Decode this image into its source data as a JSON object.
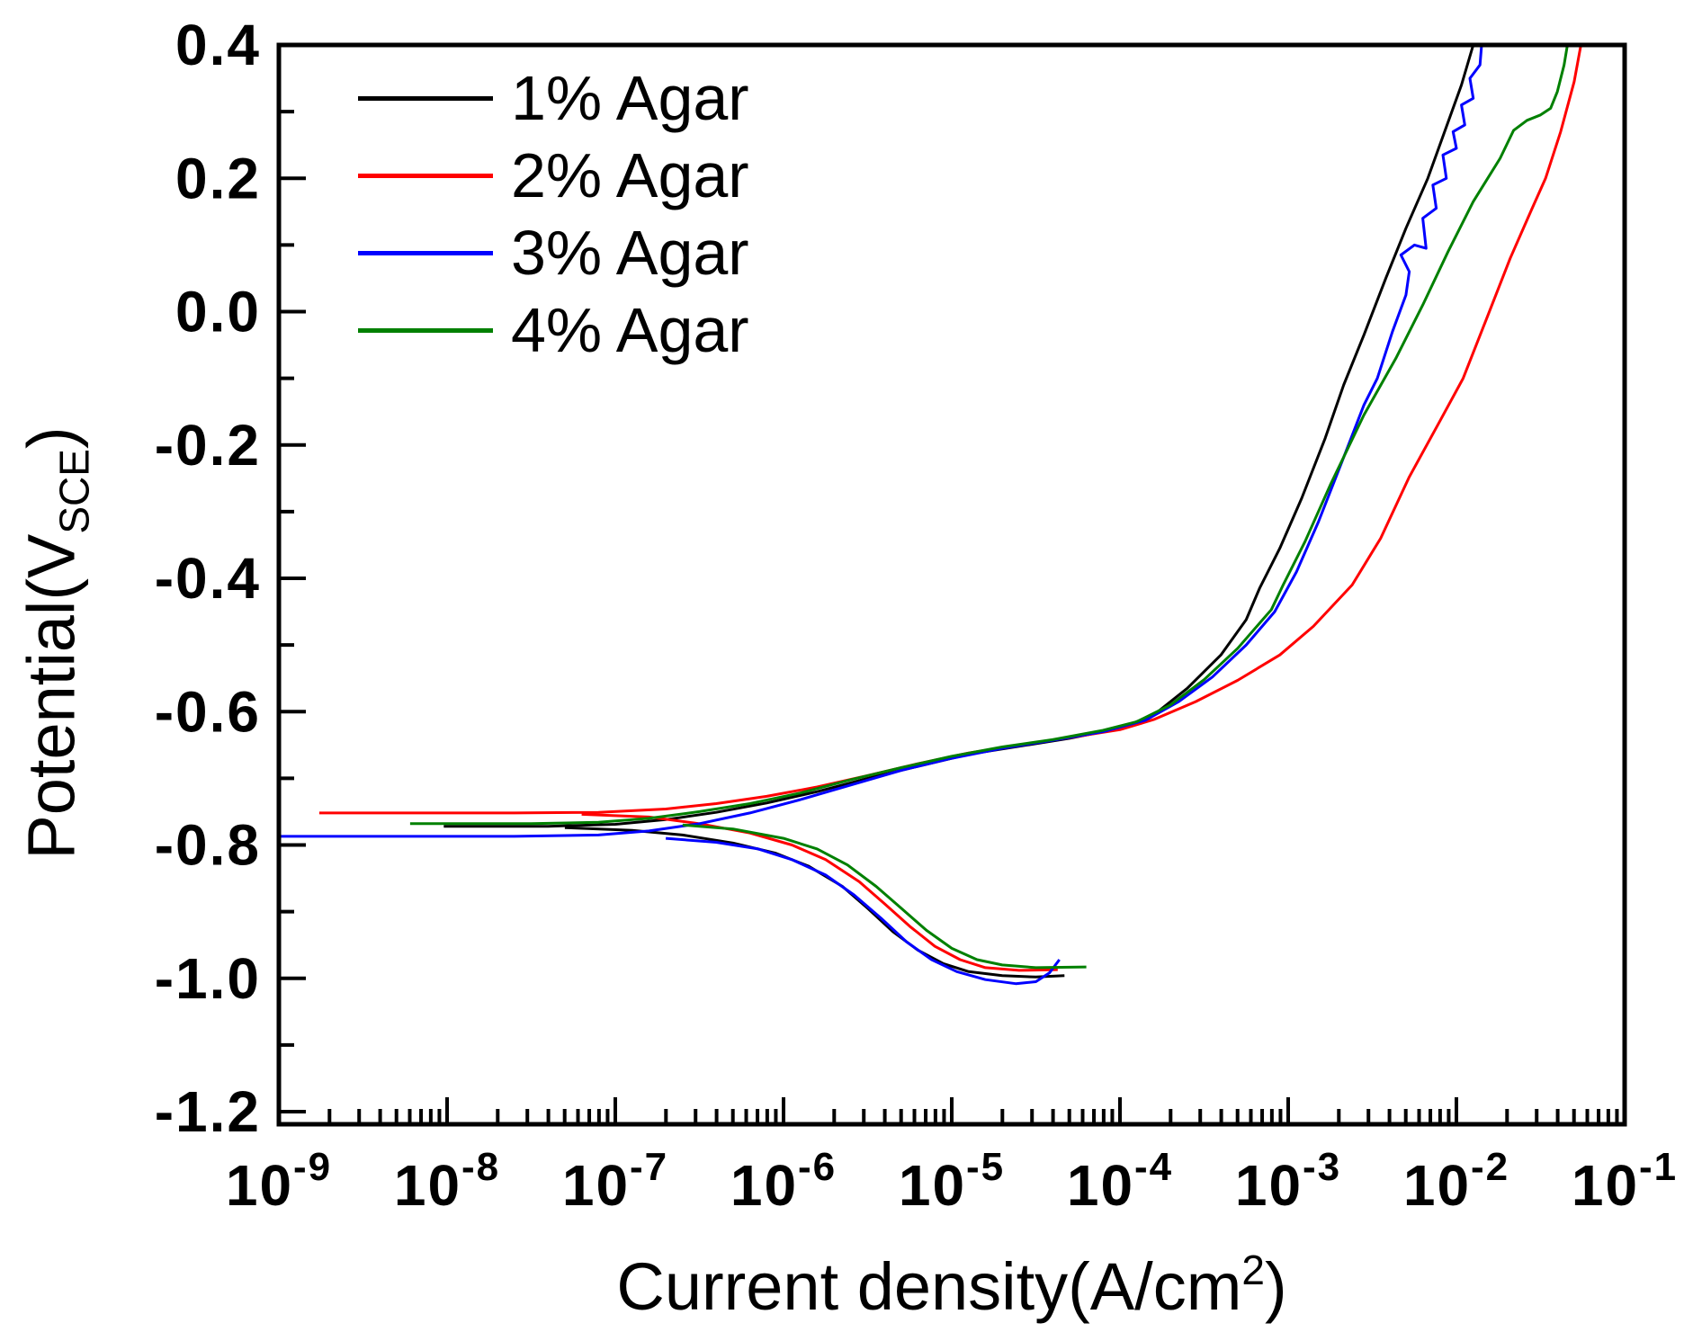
{
  "chart_data": {
    "type": "line",
    "title": "",
    "xlabel": {
      "main": "Current density(A/cm",
      "sup": "2",
      "close": ")"
    },
    "ylabel": {
      "main": "Potential(V",
      "sub": "SCE",
      "close": ")"
    },
    "x_axis": {
      "scale": "log",
      "min_exponent": -9,
      "max_exponent": -1,
      "tick_base": "10",
      "tick_exponents": [
        -9,
        -8,
        -7,
        -6,
        -5,
        -4,
        -3,
        -2,
        -1
      ],
      "minor_ticks_per_decade": [
        2,
        3,
        4,
        5,
        6,
        7,
        8,
        9
      ]
    },
    "y_axis": {
      "min": -1.2,
      "max": 0.4,
      "major_step": 0.2,
      "minor_step": 0.1,
      "tick_labels": [
        "0.4",
        "0.2",
        "0.0",
        "-0.2",
        "-0.4",
        "-0.6",
        "-0.8",
        "-1.0",
        "-1.2"
      ]
    },
    "grid": false,
    "legend_position": "top-left-inside",
    "series": [
      {
        "name": "1% Agar",
        "color": "#000000",
        "ecorr_V": -0.77,
        "anodic": [
          [
            -8.02,
            -0.772
          ],
          [
            -7.4,
            -0.772
          ],
          [
            -7.0,
            -0.769
          ],
          [
            -6.7,
            -0.762
          ],
          [
            -6.4,
            -0.751
          ],
          [
            -6.1,
            -0.737
          ],
          [
            -5.8,
            -0.72
          ],
          [
            -5.5,
            -0.7
          ],
          [
            -5.2,
            -0.682
          ],
          [
            -4.9,
            -0.664
          ],
          [
            -4.6,
            -0.652
          ],
          [
            -4.3,
            -0.64
          ],
          [
            -4.0,
            -0.625
          ],
          [
            -3.8,
            -0.605
          ],
          [
            -3.6,
            -0.565
          ],
          [
            -3.4,
            -0.515
          ],
          [
            -3.25,
            -0.462
          ],
          [
            -3.17,
            -0.415
          ],
          [
            -3.05,
            -0.355
          ],
          [
            -2.92,
            -0.28
          ],
          [
            -2.78,
            -0.19
          ],
          [
            -2.67,
            -0.11
          ],
          [
            -2.55,
            -0.035
          ],
          [
            -2.42,
            0.05
          ],
          [
            -2.3,
            0.125
          ],
          [
            -2.17,
            0.2
          ],
          [
            -2.07,
            0.27
          ],
          [
            -1.97,
            0.34
          ],
          [
            -1.9,
            0.4
          ]
        ],
        "cathodic": [
          [
            -7.3,
            -0.774
          ],
          [
            -6.9,
            -0.778
          ],
          [
            -6.6,
            -0.785
          ],
          [
            -6.3,
            -0.797
          ],
          [
            -6.05,
            -0.812
          ],
          [
            -5.85,
            -0.832
          ],
          [
            -5.65,
            -0.862
          ],
          [
            -5.5,
            -0.895
          ],
          [
            -5.35,
            -0.93
          ],
          [
            -5.2,
            -0.958
          ],
          [
            -5.05,
            -0.978
          ],
          [
            -4.9,
            -0.99
          ],
          [
            -4.7,
            -0.996
          ],
          [
            -4.5,
            -0.998
          ],
          [
            -4.33,
            -0.996
          ]
        ]
      },
      {
        "name": "2% Agar",
        "color": "#FF0000",
        "ecorr_V": -0.75,
        "anodic": [
          [
            -8.76,
            -0.752
          ],
          [
            -7.6,
            -0.752
          ],
          [
            -7.1,
            -0.751
          ],
          [
            -6.7,
            -0.746
          ],
          [
            -6.4,
            -0.738
          ],
          [
            -6.1,
            -0.727
          ],
          [
            -5.8,
            -0.713
          ],
          [
            -5.5,
            -0.696
          ],
          [
            -5.2,
            -0.678
          ],
          [
            -4.9,
            -0.662
          ],
          [
            -4.6,
            -0.65
          ],
          [
            -4.3,
            -0.639
          ],
          [
            -4.0,
            -0.627
          ],
          [
            -3.8,
            -0.612
          ],
          [
            -3.55,
            -0.585
          ],
          [
            -3.3,
            -0.553
          ],
          [
            -3.05,
            -0.515
          ],
          [
            -2.85,
            -0.472
          ],
          [
            -2.62,
            -0.41
          ],
          [
            -2.45,
            -0.34
          ],
          [
            -2.28,
            -0.248
          ],
          [
            -2.1,
            -0.165
          ],
          [
            -1.96,
            -0.1
          ],
          [
            -1.82,
            -0.01
          ],
          [
            -1.68,
            0.08
          ],
          [
            -1.55,
            0.155
          ],
          [
            -1.47,
            0.2
          ],
          [
            -1.38,
            0.27
          ],
          [
            -1.3,
            0.345
          ],
          [
            -1.26,
            0.4
          ]
        ],
        "cathodic": [
          [
            -7.2,
            -0.754
          ],
          [
            -6.8,
            -0.758
          ],
          [
            -6.5,
            -0.768
          ],
          [
            -6.2,
            -0.782
          ],
          [
            -5.95,
            -0.8
          ],
          [
            -5.75,
            -0.822
          ],
          [
            -5.55,
            -0.855
          ],
          [
            -5.4,
            -0.888
          ],
          [
            -5.25,
            -0.922
          ],
          [
            -5.1,
            -0.952
          ],
          [
            -4.95,
            -0.972
          ],
          [
            -4.8,
            -0.984
          ],
          [
            -4.6,
            -0.988
          ],
          [
            -4.37,
            -0.987
          ]
        ]
      },
      {
        "name": "3% Agar",
        "color": "#0000FF",
        "ecorr_V": -0.79,
        "anodic": [
          [
            -9.0,
            -0.787
          ],
          [
            -7.6,
            -0.787
          ],
          [
            -7.1,
            -0.785
          ],
          [
            -6.8,
            -0.779
          ],
          [
            -6.5,
            -0.768
          ],
          [
            -6.2,
            -0.752
          ],
          [
            -5.9,
            -0.732
          ],
          [
            -5.6,
            -0.71
          ],
          [
            -5.3,
            -0.688
          ],
          [
            -5.0,
            -0.67
          ],
          [
            -4.7,
            -0.655
          ],
          [
            -4.4,
            -0.643
          ],
          [
            -4.1,
            -0.63
          ],
          [
            -3.85,
            -0.613
          ],
          [
            -3.65,
            -0.585
          ],
          [
            -3.45,
            -0.548
          ],
          [
            -3.25,
            -0.5
          ],
          [
            -3.08,
            -0.45
          ],
          [
            -2.95,
            -0.39
          ],
          [
            -2.82,
            -0.315
          ],
          [
            -2.68,
            -0.225
          ],
          [
            -2.55,
            -0.14
          ],
          [
            -2.47,
            -0.1
          ],
          [
            -2.38,
            -0.03
          ],
          [
            -2.3,
            0.025
          ],
          [
            -2.28,
            0.06
          ],
          [
            -2.33,
            0.085
          ],
          [
            -2.25,
            0.1
          ],
          [
            -2.18,
            0.095
          ],
          [
            -2.2,
            0.14
          ],
          [
            -2.12,
            0.155
          ],
          [
            -2.14,
            0.19
          ],
          [
            -2.06,
            0.2
          ],
          [
            -2.08,
            0.235
          ],
          [
            -2.0,
            0.245
          ],
          [
            -2.02,
            0.27
          ],
          [
            -1.95,
            0.28
          ],
          [
            -1.97,
            0.31
          ],
          [
            -1.9,
            0.32
          ],
          [
            -1.92,
            0.35
          ],
          [
            -1.86,
            0.37
          ],
          [
            -1.85,
            0.4
          ]
        ],
        "cathodic": [
          [
            -6.7,
            -0.79
          ],
          [
            -6.4,
            -0.796
          ],
          [
            -6.15,
            -0.806
          ],
          [
            -5.95,
            -0.822
          ],
          [
            -5.75,
            -0.845
          ],
          [
            -5.58,
            -0.875
          ],
          [
            -5.42,
            -0.91
          ],
          [
            -5.27,
            -0.945
          ],
          [
            -5.12,
            -0.972
          ],
          [
            -4.97,
            -0.99
          ],
          [
            -4.8,
            -1.002
          ],
          [
            -4.62,
            -1.008
          ],
          [
            -4.5,
            -1.005
          ],
          [
            -4.42,
            -0.992
          ],
          [
            -4.36,
            -0.972
          ]
        ]
      },
      {
        "name": "4% Agar",
        "color": "#008000",
        "ecorr_V": -0.77,
        "anodic": [
          [
            -8.22,
            -0.768
          ],
          [
            -7.5,
            -0.768
          ],
          [
            -7.1,
            -0.766
          ],
          [
            -6.8,
            -0.76
          ],
          [
            -6.5,
            -0.75
          ],
          [
            -6.2,
            -0.738
          ],
          [
            -5.9,
            -0.722
          ],
          [
            -5.6,
            -0.702
          ],
          [
            -5.3,
            -0.684
          ],
          [
            -5.0,
            -0.667
          ],
          [
            -4.7,
            -0.653
          ],
          [
            -4.4,
            -0.642
          ],
          [
            -4.1,
            -0.628
          ],
          [
            -3.9,
            -0.615
          ],
          [
            -3.7,
            -0.59
          ],
          [
            -3.5,
            -0.552
          ],
          [
            -3.3,
            -0.505
          ],
          [
            -3.1,
            -0.447
          ],
          [
            -3.03,
            -0.41
          ],
          [
            -2.9,
            -0.345
          ],
          [
            -2.75,
            -0.26
          ],
          [
            -2.55,
            -0.155
          ],
          [
            -2.36,
            -0.07
          ],
          [
            -2.2,
            0.01
          ],
          [
            -2.05,
            0.09
          ],
          [
            -1.9,
            0.165
          ],
          [
            -1.74,
            0.23
          ],
          [
            -1.66,
            0.272
          ],
          [
            -1.58,
            0.287
          ],
          [
            -1.5,
            0.295
          ],
          [
            -1.44,
            0.305
          ],
          [
            -1.4,
            0.33
          ],
          [
            -1.36,
            0.37
          ],
          [
            -1.34,
            0.4
          ]
        ],
        "cathodic": [
          [
            -6.6,
            -0.77
          ],
          [
            -6.3,
            -0.776
          ],
          [
            -6.0,
            -0.79
          ],
          [
            -5.8,
            -0.806
          ],
          [
            -5.62,
            -0.83
          ],
          [
            -5.45,
            -0.862
          ],
          [
            -5.3,
            -0.895
          ],
          [
            -5.15,
            -0.928
          ],
          [
            -5.0,
            -0.955
          ],
          [
            -4.85,
            -0.972
          ],
          [
            -4.7,
            -0.98
          ],
          [
            -4.5,
            -0.984
          ],
          [
            -4.2,
            -0.983
          ]
        ]
      }
    ]
  },
  "legend": {
    "items": [
      {
        "label": "1% Agar",
        "color": "#000000"
      },
      {
        "label": "2% Agar",
        "color": "#FF0000"
      },
      {
        "label": "3% Agar",
        "color": "#0000FF"
      },
      {
        "label": "4% Agar",
        "color": "#008000"
      }
    ]
  }
}
